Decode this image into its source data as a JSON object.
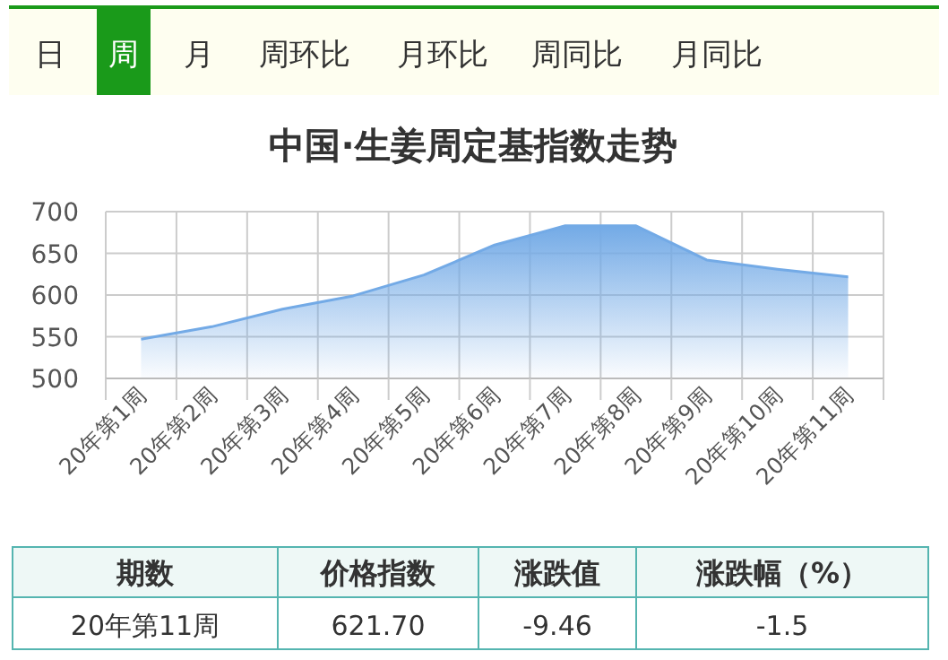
{
  "chart_data": {
    "type": "area",
    "title": "中国·生姜周定基指数走势",
    "categories": [
      "20年第1周",
      "20年第2周",
      "20年第3周",
      "20年第4周",
      "20年第5周",
      "20年第6周",
      "20年第7周",
      "20年第8周",
      "20年第9周",
      "20年第10周",
      "20年第11周"
    ],
    "series": [
      {
        "color": "#73aae6",
        "values": [
          547,
          562,
          583,
          599,
          624,
          660,
          683,
          683,
          642,
          631,
          621.7
        ]
      }
    ],
    "ylim": [
      500,
      700
    ],
    "yticks": [
      500,
      550,
      600,
      650,
      700
    ],
    "grid": true,
    "annotations": [
      "日",
      "周",
      "月",
      "周环比",
      "月环比",
      "周同比",
      "月同比",
      "期数",
      "价格指数",
      "涨跌值",
      "涨跌幅（%）",
      "20年第11周",
      "621.70",
      "-9.46",
      "-1.5"
    ]
  }
}
